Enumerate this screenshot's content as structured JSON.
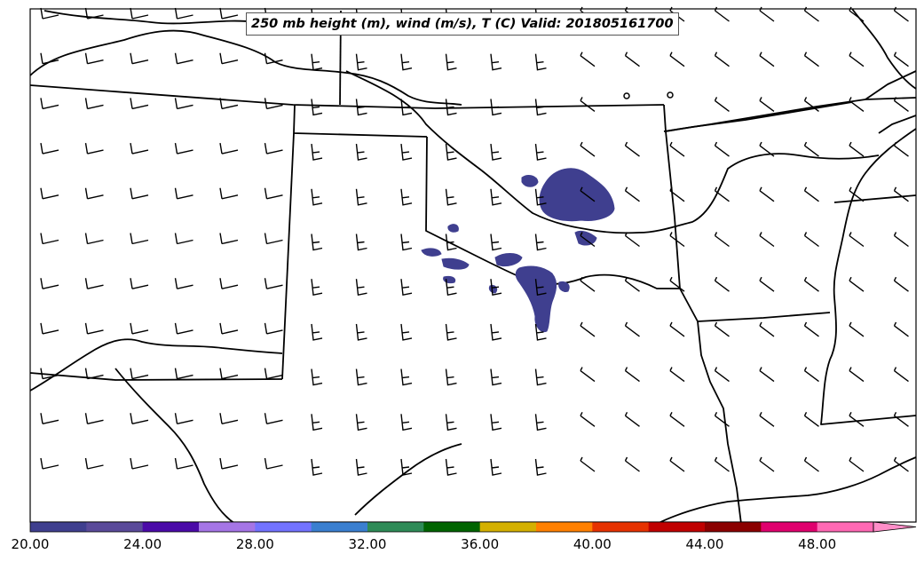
{
  "title": "250 mb height (m), wind (m/s), T (C) Valid: 201805161700",
  "colorbar": {
    "min": 20,
    "max": 52,
    "step": 2,
    "extend": "max",
    "tick_labels": [
      "20.00",
      "24.00",
      "28.00",
      "32.00",
      "36.00",
      "40.00",
      "44.00",
      "48.00"
    ],
    "tick_values": [
      20,
      24,
      28,
      32,
      36,
      40,
      44,
      48
    ],
    "colors": [
      "#3f3f8f",
      "#5a4a9a",
      "#4b0aa8",
      "#a575e6",
      "#7373ff",
      "#3a7fd0",
      "#2e8b57",
      "#006400",
      "#d4b000",
      "#ff8000",
      "#e63200",
      "#c00000",
      "#8b0000",
      "#e0006e",
      "#ff69b4",
      "#ff8ec8"
    ]
  },
  "shading_color": "#3f3f8f",
  "barb_color": "#000000"
}
